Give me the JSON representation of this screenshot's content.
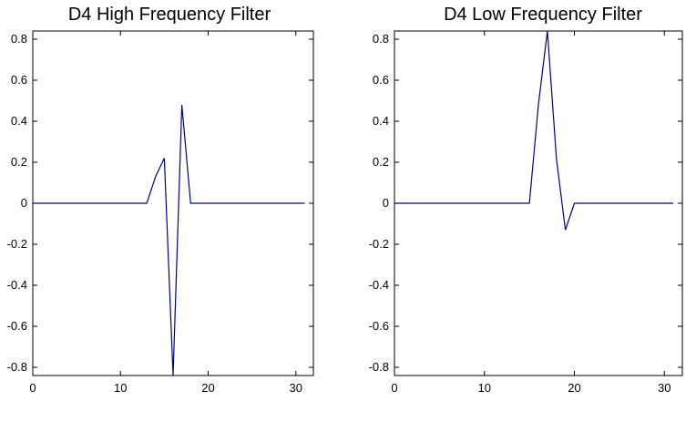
{
  "chart_data": [
    {
      "type": "line",
      "title": "D4 High Frequency Filter",
      "xlabel": "",
      "ylabel": "",
      "xlim": [
        0,
        32
      ],
      "ylim": [
        -0.84,
        0.84
      ],
      "xticks": [
        0,
        10,
        20,
        30
      ],
      "yticks": [
        -0.8,
        -0.6,
        -0.4,
        -0.2,
        0,
        0.2,
        0.4,
        0.6,
        0.8
      ],
      "xtick_labels": [
        "0",
        "10",
        "20",
        "30"
      ],
      "ytick_labels": [
        "-0.8",
        "-0.6",
        "-0.4",
        "-0.2",
        "0",
        "0.2",
        "0.4",
        "0.6",
        "0.8"
      ],
      "grid": false,
      "line_color": "#00008b",
      "series": [
        {
          "x": [
            0,
            1,
            2,
            3,
            4,
            5,
            6,
            7,
            8,
            9,
            10,
            11,
            12,
            13,
            14,
            15,
            16,
            17,
            18,
            19,
            20,
            21,
            22,
            23,
            24,
            25,
            26,
            27,
            28,
            29,
            30,
            31
          ],
          "y": [
            0,
            0,
            0,
            0,
            0,
            0,
            0,
            0,
            0,
            0,
            0,
            0,
            0,
            0,
            0.13,
            0.22,
            -0.84,
            0.48,
            0,
            0,
            0,
            0,
            0,
            0,
            0,
            0,
            0,
            0,
            0,
            0,
            0,
            0
          ]
        }
      ]
    },
    {
      "type": "line",
      "title": "D4 Low Frequency Filter",
      "xlabel": "",
      "ylabel": "",
      "xlim": [
        0,
        32
      ],
      "ylim": [
        -0.84,
        0.84
      ],
      "xticks": [
        0,
        10,
        20,
        30
      ],
      "yticks": [
        -0.8,
        -0.6,
        -0.4,
        -0.2,
        0,
        0.2,
        0.4,
        0.6,
        0.8
      ],
      "xtick_labels": [
        "0",
        "10",
        "20",
        "30"
      ],
      "ytick_labels": [
        "-0.8",
        "-0.6",
        "-0.4",
        "-0.2",
        "0",
        "0.2",
        "0.4",
        "0.6",
        "0.8"
      ],
      "grid": false,
      "line_color": "#00008b",
      "series": [
        {
          "x": [
            0,
            1,
            2,
            3,
            4,
            5,
            6,
            7,
            8,
            9,
            10,
            11,
            12,
            13,
            14,
            15,
            16,
            17,
            18,
            19,
            20,
            21,
            22,
            23,
            24,
            25,
            26,
            27,
            28,
            29,
            30,
            31
          ],
          "y": [
            0,
            0,
            0,
            0,
            0,
            0,
            0,
            0,
            0,
            0,
            0,
            0,
            0,
            0,
            0,
            0,
            0.48,
            0.84,
            0.22,
            -0.13,
            0,
            0,
            0,
            0,
            0,
            0,
            0,
            0,
            0,
            0,
            0,
            0
          ]
        }
      ]
    }
  ]
}
